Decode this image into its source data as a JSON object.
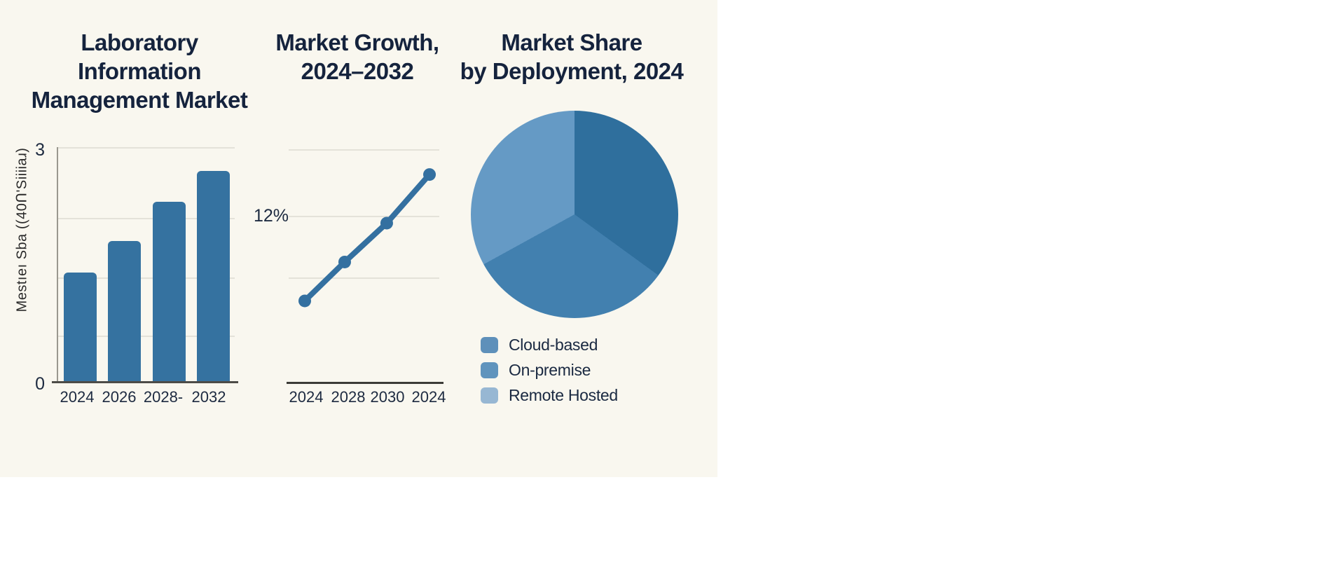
{
  "canvas": {
    "background": "#ffffff",
    "panel_background": "#f9f7ef",
    "text_color": "#16243e"
  },
  "chart_data": [
    {
      "type": "bar",
      "title": "Laboratory Information Management Market",
      "title_lines": [
        "Laboratory",
        "Information",
        "Management Market"
      ],
      "ylabel": "Mestıeı Sba ((40Ո'Siiiiaɹ)",
      "categories": [
        "2024",
        "2026",
        "2028-",
        "2032"
      ],
      "values": [
        1.4,
        1.8,
        2.3,
        2.7
      ],
      "ylim": [
        0,
        3
      ],
      "ytick_labels": [
        "3",
        "0"
      ],
      "bar_color": "#3572a0",
      "grid": true,
      "legend_position": "none"
    },
    {
      "type": "line",
      "title": "Market Growth, 2024–2032",
      "title_lines": [
        "Market Growth,",
        "2024–2032"
      ],
      "x_labels": [
        "2024",
        "2028",
        "2030",
        "2024"
      ],
      "values": [
        8,
        10,
        12,
        14.5
      ],
      "ylim": [
        3.8,
        15.8
      ],
      "annotation": "12%",
      "line_color": "#3470a0",
      "grid": true,
      "legend_position": "none"
    },
    {
      "type": "pie",
      "title": "Market Share by Deployment, 2024",
      "title_lines": [
        "Market Share",
        "by Deployment, 2024"
      ],
      "slices": [
        {
          "label": "Cloud-based",
          "value": 35,
          "color": "#2f6f9d",
          "legend_color": "#5e90ba"
        },
        {
          "label": "On-premise",
          "value": 32,
          "color": "#4280af",
          "legend_color": "#6094bd"
        },
        {
          "label": "Remote Hosted",
          "value": 33,
          "color": "#659ac5",
          "legend_color": "#97b7d3"
        }
      ],
      "legend_position": "below"
    }
  ]
}
